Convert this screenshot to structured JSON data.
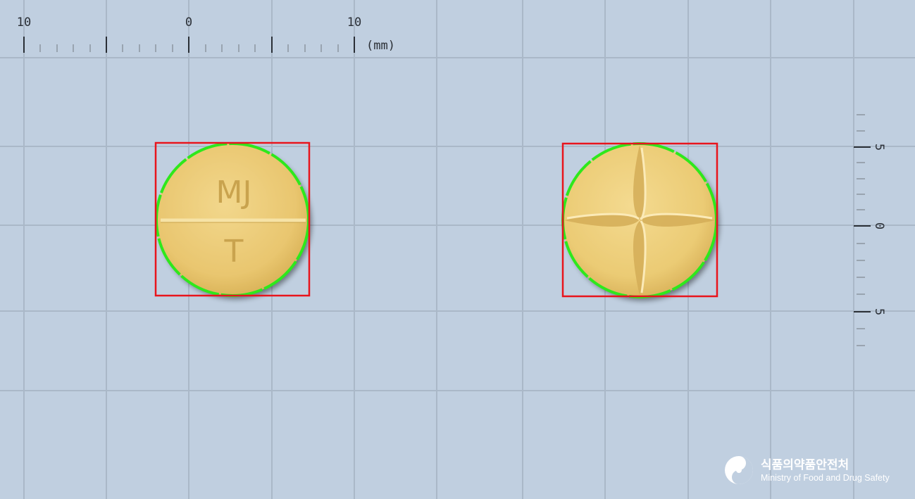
{
  "ruler": {
    "top_labels": [
      "10",
      "0",
      "10"
    ],
    "unit": "(mm)",
    "right_labels": [
      "5",
      "0",
      "5"
    ]
  },
  "pill_front": {
    "imprint_top": "MJ",
    "imprint_bottom": "T",
    "color": "#edcb76"
  },
  "pill_back": {
    "color": "#efd07c"
  },
  "bbox_color": "#e8141c",
  "outline_color": "#2ee81c",
  "logo": {
    "korean": "식품의약품안전처",
    "english": "Ministry of Food and Drug Safety"
  }
}
